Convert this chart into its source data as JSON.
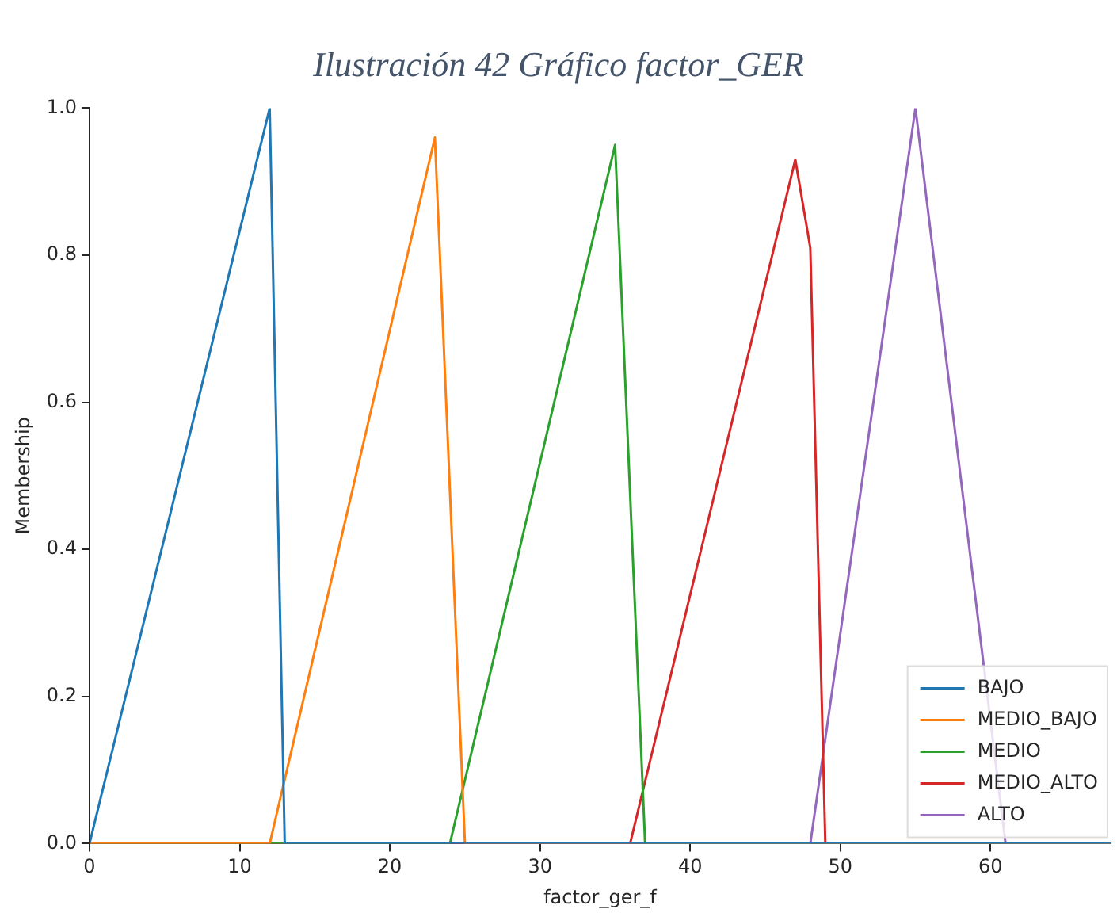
{
  "chart_data": {
    "type": "line",
    "title": "Ilustración 42 Gráfico factor_GER",
    "xlabel": "factor_ger_f",
    "ylabel": "Membership",
    "xlim": [
      0,
      68
    ],
    "xticks": [
      0,
      10,
      20,
      30,
      40,
      50,
      60
    ],
    "ylim": [
      0,
      1
    ],
    "yticks": [
      {
        "value": 0,
        "label": "0.0"
      },
      0.2,
      0.4,
      0.6,
      0.8,
      {
        "value": 1,
        "label": "1.0"
      }
    ],
    "grid": false,
    "legend": "bottom right",
    "marker": "none",
    "line_style": "solid",
    "series": [
      {
        "name": "BAJO",
        "color": "#1f77b4",
        "x": [
          0,
          12,
          13,
          68
        ],
        "values": [
          0,
          1,
          0,
          0
        ]
      },
      {
        "name": "MEDIO_BAJO",
        "color": "#ff7f0e",
        "x": [
          0,
          12,
          23,
          25,
          68
        ],
        "values": [
          0,
          0,
          0.96,
          0,
          0
        ]
      },
      {
        "name": "MEDIO",
        "color": "#2ca02c",
        "x": [
          0,
          24,
          35,
          37,
          68
        ],
        "values": [
          0,
          0,
          0.95,
          0,
          0
        ]
      },
      {
        "name": "MEDIO_ALTO",
        "color": "#d62728",
        "x": [
          0,
          36,
          47,
          48,
          49,
          68
        ],
        "values": [
          0,
          0,
          0.93,
          0.81,
          0,
          0
        ]
      },
      {
        "name": "ALTO",
        "color": "#9467bd",
        "x": [
          0,
          48,
          55,
          61,
          68
        ],
        "values": [
          0,
          0,
          1,
          0,
          0
        ]
      }
    ]
  }
}
